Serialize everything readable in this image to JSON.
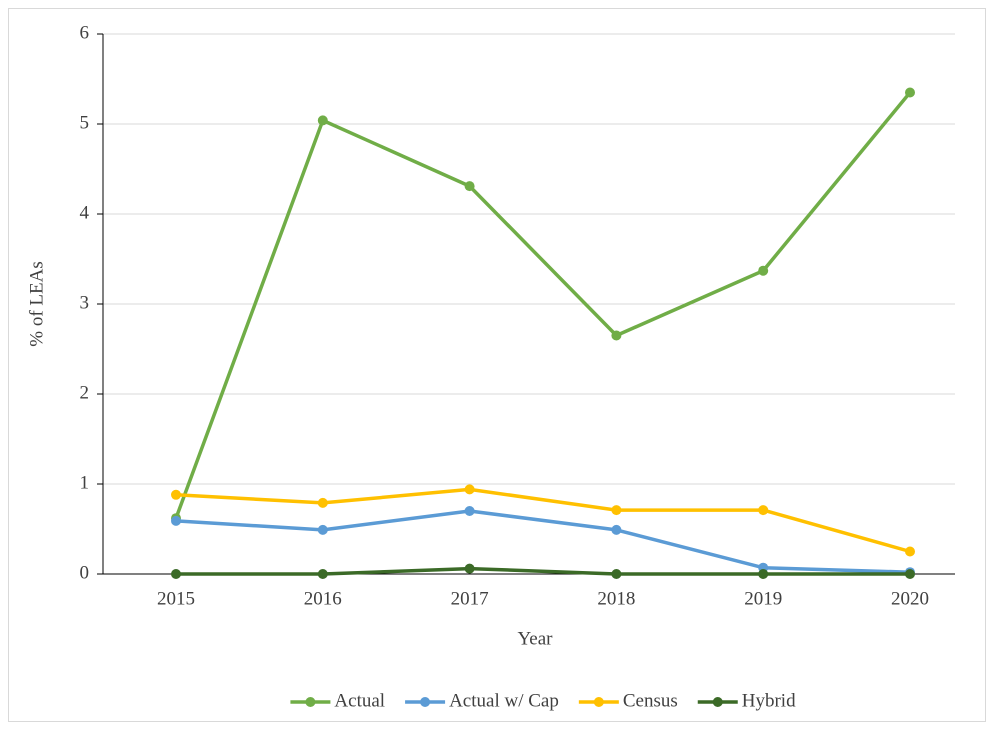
{
  "chart_data": {
    "type": "line",
    "x_label": "Year",
    "y_label": "% of LEAs",
    "categories": [
      "2015",
      "2016",
      "2017",
      "2018",
      "2019",
      "2020"
    ],
    "series": [
      {
        "name": "Actual",
        "color": "#70ad47",
        "values": [
          0.62,
          5.04,
          4.31,
          2.65,
          3.37,
          5.35
        ]
      },
      {
        "name": "Actual w/ Cap",
        "color": "#5b9bd5",
        "values": [
          0.59,
          0.49,
          0.7,
          0.49,
          0.07,
          0.02
        ]
      },
      {
        "name": "Census",
        "color": "#ffc000",
        "values": [
          0.88,
          0.79,
          0.94,
          0.71,
          0.71,
          0.25
        ]
      },
      {
        "name": "Hybrid",
        "color": "#3b6a27",
        "values": [
          0,
          0,
          0.06,
          0,
          0,
          0
        ]
      }
    ],
    "ylim": [
      0,
      6
    ],
    "yticks": [
      0,
      1,
      2,
      3,
      4,
      5,
      6
    ],
    "grid": true,
    "legend": "bottom"
  }
}
